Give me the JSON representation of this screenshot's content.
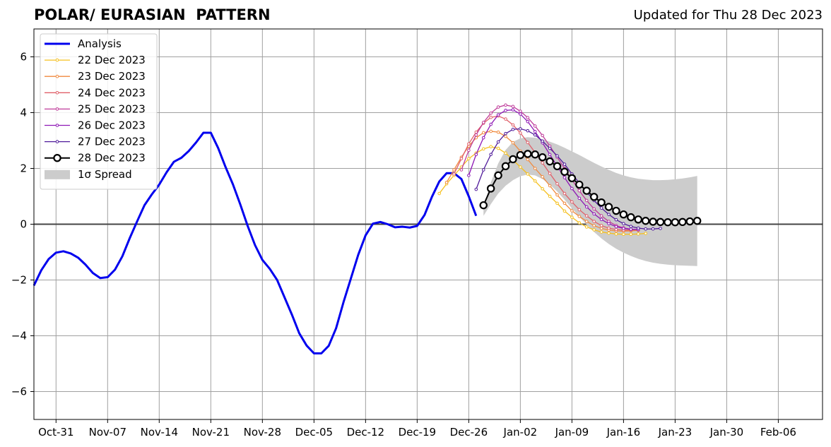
{
  "title": "POLAR/ EURASIAN  PATTERN",
  "updated": "Updated for Thu 28 Dec 2023",
  "chart_data": {
    "type": "line",
    "title": "POLAR/ EURASIAN  PATTERN",
    "xlabel": "",
    "ylabel": "",
    "xlim": [
      "2023-10-28",
      "2024-02-12"
    ],
    "ylim": [
      -7,
      7
    ],
    "grid": true,
    "legend_position": "top-left",
    "x_ticks": [
      {
        "date": "2023-10-31",
        "label": "Oct-31"
      },
      {
        "date": "2023-11-07",
        "label": "Nov-07"
      },
      {
        "date": "2023-11-14",
        "label": "Nov-14"
      },
      {
        "date": "2023-11-21",
        "label": "Nov-21"
      },
      {
        "date": "2023-11-28",
        "label": "Nov-28"
      },
      {
        "date": "2023-12-05",
        "label": "Dec-05"
      },
      {
        "date": "2023-12-12",
        "label": "Dec-12"
      },
      {
        "date": "2023-12-19",
        "label": "Dec-19"
      },
      {
        "date": "2023-12-26",
        "label": "Dec-26"
      },
      {
        "date": "2024-01-02",
        "label": "Jan-02"
      },
      {
        "date": "2024-01-09",
        "label": "Jan-09"
      },
      {
        "date": "2024-01-16",
        "label": "Jan-16"
      },
      {
        "date": "2024-01-23",
        "label": "Jan-23"
      },
      {
        "date": "2024-01-30",
        "label": "Jan-30"
      },
      {
        "date": "2024-02-06",
        "label": "Feb-06"
      }
    ],
    "y_ticks": [
      {
        "value": -6,
        "label": "−6"
      },
      {
        "value": -4,
        "label": "−4"
      },
      {
        "value": -2,
        "label": "−2"
      },
      {
        "value": 0,
        "label": "0"
      },
      {
        "value": 2,
        "label": "2"
      },
      {
        "value": 4,
        "label": "4"
      },
      {
        "value": 6,
        "label": "6"
      }
    ],
    "analysis": {
      "name": "Analysis",
      "color": "#0000ee",
      "start": "2023-10-28",
      "values": [
        -2.2,
        -1.65,
        -1.25,
        -1.02,
        -0.97,
        -1.05,
        -1.2,
        -1.45,
        -1.75,
        -1.93,
        -1.9,
        -1.63,
        -1.15,
        -0.5,
        0.1,
        0.68,
        1.07,
        1.42,
        1.86,
        2.24,
        2.38,
        2.62,
        2.93,
        3.28,
        3.28,
        2.73,
        2.05,
        1.43,
        0.71,
        -0.06,
        -0.75,
        -1.28,
        -1.6,
        -2.0,
        -2.62,
        -3.24,
        -3.91,
        -4.35,
        -4.63,
        -4.63,
        -4.36,
        -3.73,
        -2.8,
        -1.95,
        -1.1,
        -0.4,
        0.02,
        0.08,
        0.0,
        -0.11,
        -0.09,
        -0.12,
        -0.06,
        0.33,
        0.98,
        1.53,
        1.83,
        1.83,
        1.62,
        1.0,
        0.3
      ]
    },
    "series": [
      {
        "name": "22 Dec 2023",
        "color": "#f5c01e",
        "start": "2023-12-22",
        "values": [
          1.1,
          1.45,
          1.75,
          2.05,
          2.35,
          2.55,
          2.7,
          2.78,
          2.72,
          2.55,
          2.3,
          2.05,
          1.8,
          1.55,
          1.27,
          1.0,
          0.75,
          0.47,
          0.25,
          0.05,
          -0.1,
          -0.2,
          -0.28,
          -0.32,
          -0.35,
          -0.36,
          -0.36,
          -0.35,
          -0.33
        ]
      },
      {
        "name": "23 Dec 2023",
        "color": "#f08a3e",
        "start": "2023-12-23",
        "values": [
          1.5,
          1.95,
          2.4,
          2.8,
          3.1,
          3.28,
          3.33,
          3.3,
          3.15,
          2.92,
          2.62,
          2.32,
          2.0,
          1.7,
          1.38,
          1.05,
          0.75,
          0.48,
          0.28,
          0.1,
          -0.05,
          -0.15,
          -0.21,
          -0.24,
          -0.25,
          -0.24,
          -0.22
        ]
      },
      {
        "name": "24 Dec 2023",
        "color": "#e0606a",
        "start": "2023-12-24",
        "values": [
          1.8,
          2.35,
          2.88,
          3.3,
          3.62,
          3.83,
          3.88,
          3.77,
          3.56,
          3.27,
          2.93,
          2.57,
          2.2,
          1.82,
          1.45,
          1.1,
          0.8,
          0.52,
          0.3,
          0.1,
          -0.05,
          -0.14,
          -0.19,
          -0.21,
          -0.21,
          -0.2
        ]
      },
      {
        "name": "25 Dec 2023",
        "color": "#bf3c9a",
        "start": "2023-12-25",
        "values": [
          1.95,
          2.65,
          3.2,
          3.65,
          3.98,
          4.2,
          4.27,
          4.22,
          4.05,
          3.82,
          3.52,
          3.18,
          2.8,
          2.4,
          2.0,
          1.6,
          1.2,
          0.85,
          0.55,
          0.3,
          0.1,
          -0.05,
          -0.13,
          -0.18,
          -0.2
        ]
      },
      {
        "name": "26 Dec 2023",
        "color": "#8e17b5",
        "start": "2023-12-26",
        "values": [
          1.75,
          2.5,
          3.1,
          3.58,
          3.92,
          4.08,
          4.1,
          3.95,
          3.68,
          3.32,
          2.92,
          2.5,
          2.08,
          1.67,
          1.28,
          0.93,
          0.62,
          0.37,
          0.17,
          0.02,
          -0.09,
          -0.15,
          -0.18,
          -0.19
        ]
      },
      {
        "name": "27 Dec 2023",
        "color": "#4f1a9a",
        "start": "2023-12-27",
        "values": [
          1.25,
          1.95,
          2.5,
          2.95,
          3.25,
          3.4,
          3.42,
          3.35,
          3.2,
          2.98,
          2.72,
          2.45,
          2.15,
          1.8,
          1.48,
          1.15,
          0.85,
          0.58,
          0.35,
          0.16,
          0.02,
          -0.08,
          -0.14,
          -0.17,
          -0.17,
          -0.15
        ]
      }
    ],
    "forecast": {
      "name": "28 Dec 2023",
      "color": "#000000",
      "start": "2023-12-28",
      "values": [
        0.68,
        1.28,
        1.75,
        2.08,
        2.33,
        2.48,
        2.52,
        2.5,
        2.4,
        2.25,
        2.08,
        1.88,
        1.65,
        1.42,
        1.2,
        0.98,
        0.78,
        0.62,
        0.48,
        0.35,
        0.25,
        0.17,
        0.12,
        0.09,
        0.08,
        0.07,
        0.07,
        0.08,
        0.1,
        0.12
      ]
    },
    "spread": {
      "name": "1σ Spread",
      "color": "#cccccc",
      "start": "2023-12-28",
      "upper": [
        0.62,
        1.5,
        2.18,
        2.66,
        2.95,
        3.08,
        3.12,
        3.1,
        3.04,
        2.96,
        2.86,
        2.74,
        2.61,
        2.48,
        2.34,
        2.2,
        2.07,
        1.95,
        1.84,
        1.75,
        1.68,
        1.63,
        1.6,
        1.58,
        1.58,
        1.59,
        1.61,
        1.64,
        1.68,
        1.73
      ],
      "lower": [
        0.3,
        0.72,
        1.1,
        1.38,
        1.58,
        1.72,
        1.78,
        1.75,
        1.62,
        1.42,
        1.17,
        0.88,
        0.57,
        0.27,
        -0.02,
        -0.28,
        -0.51,
        -0.71,
        -0.88,
        -1.02,
        -1.14,
        -1.24,
        -1.32,
        -1.38,
        -1.42,
        -1.45,
        -1.47,
        -1.48,
        -1.49,
        -1.5
      ]
    }
  }
}
